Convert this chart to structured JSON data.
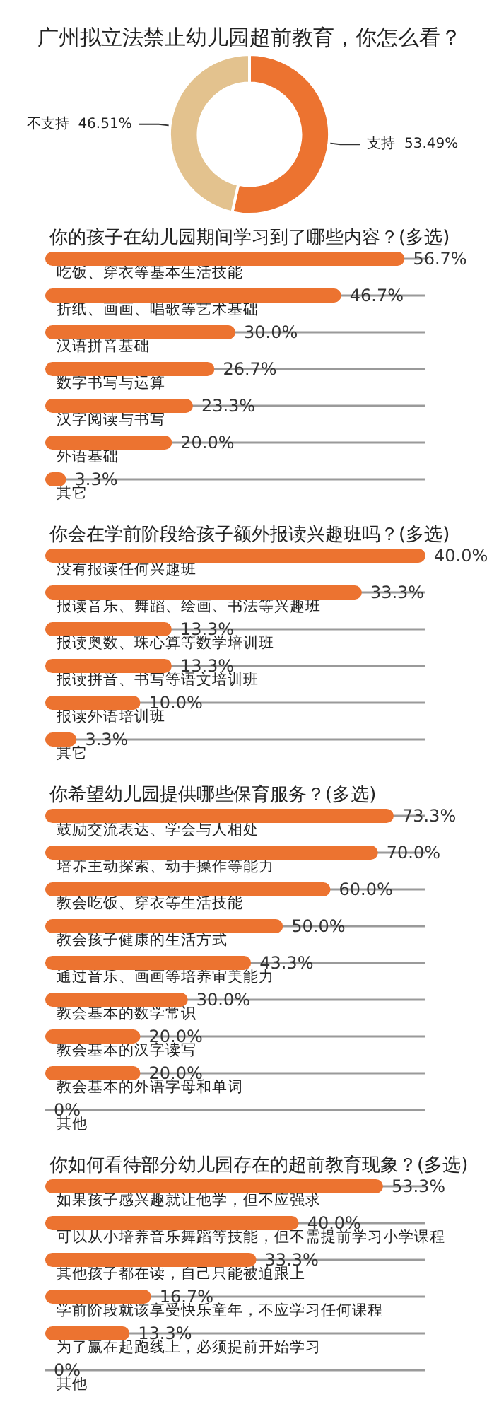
{
  "chart_data": [
    {
      "type": "donut",
      "title": "广州拟立法禁止幼儿园超前教育，你怎么看？",
      "categories": [
        "支持",
        "不支持"
      ],
      "values": [
        53.49,
        46.51
      ],
      "value_labels": [
        "53.49%",
        "46.51%"
      ],
      "colors": [
        "#ec7330",
        "#e3c28e"
      ]
    },
    {
      "type": "bar",
      "orientation": "horizontal",
      "title": "你的孩子在幼儿园期间学习到了哪些内容？(多选)",
      "categories": [
        "吃饭、穿衣等基本生活技能",
        "折纸、画画、唱歌等艺术基础",
        "汉语拼音基础",
        "数字书写与运算",
        "汉字阅读与书写",
        "外语基础",
        "其它"
      ],
      "values": [
        56.7,
        46.7,
        30.0,
        26.7,
        23.3,
        20.0,
        3.3
      ],
      "value_labels": [
        "56.7%",
        "46.7%",
        "30.0%",
        "26.7%",
        "23.3%",
        "20.0%",
        "3.3%"
      ],
      "color": "#ec7330",
      "tick_labels": "y",
      "grid": "y"
    },
    {
      "type": "bar",
      "orientation": "horizontal",
      "title": "你会在学前阶段给孩子额外报读兴趣班吗？(多选)",
      "categories": [
        "没有报读任何兴趣班",
        "报读音乐、舞蹈、绘画、书法等兴趣班",
        "报读奥数、珠心算等数学培训班",
        "报读拼音、书写等语文培训班",
        "报读外语培训班",
        "其它"
      ],
      "values": [
        40.0,
        33.3,
        13.3,
        13.3,
        10.0,
        3.3
      ],
      "value_labels": [
        "40.0%",
        "33.3%",
        "13.3%",
        "13.3%",
        "10.0%",
        "3.3%"
      ],
      "color": "#ec7330",
      "tick_labels": "y",
      "grid": "y"
    },
    {
      "type": "bar",
      "orientation": "horizontal",
      "title": "你希望幼儿园提供哪些保育服务？(多选)",
      "categories": [
        "鼓励交流表达、学会与人相处",
        "培养主动探索、动手操作等能力",
        "教会吃饭、穿衣等生活技能",
        "教会孩子健康的生活方式",
        "通过音乐、画画等培养审美能力",
        "教会基本的数学常识",
        "教会基本的汉字读写",
        "教会基本的外语字母和单词",
        "其他"
      ],
      "values": [
        73.3,
        70.0,
        60.0,
        50.0,
        43.3,
        30.0,
        20.0,
        20.0,
        0
      ],
      "value_labels": [
        "73.3%",
        "70.0%",
        "60.0%",
        "50.0%",
        "43.3%",
        "30.0%",
        "20.0%",
        "20.0%",
        "0%"
      ],
      "color": "#ec7330",
      "tick_labels": "y",
      "grid": "y"
    },
    {
      "type": "bar",
      "orientation": "horizontal",
      "title": "你如何看待部分幼儿园存在的超前教育现象？(多选)",
      "categories": [
        "如果孩子感兴趣就让他学，但不应强求",
        "可以从小培养音乐舞蹈等技能，但不需提前学习小学课程",
        "其他孩子都在读，自己只能被迫跟上",
        "学前阶段就该享受快乐童年，不应学习任何课程",
        "为了赢在起跑线上，必须提前开始学习",
        "其他"
      ],
      "values": [
        53.3,
        40.0,
        33.3,
        16.7,
        13.3,
        0
      ],
      "value_labels": [
        "53.3%",
        "40.0%",
        "33.3%",
        "16.7%",
        "13.3%",
        "0%"
      ],
      "color": "#ec7330",
      "tick_labels": "y",
      "grid": "y"
    }
  ]
}
